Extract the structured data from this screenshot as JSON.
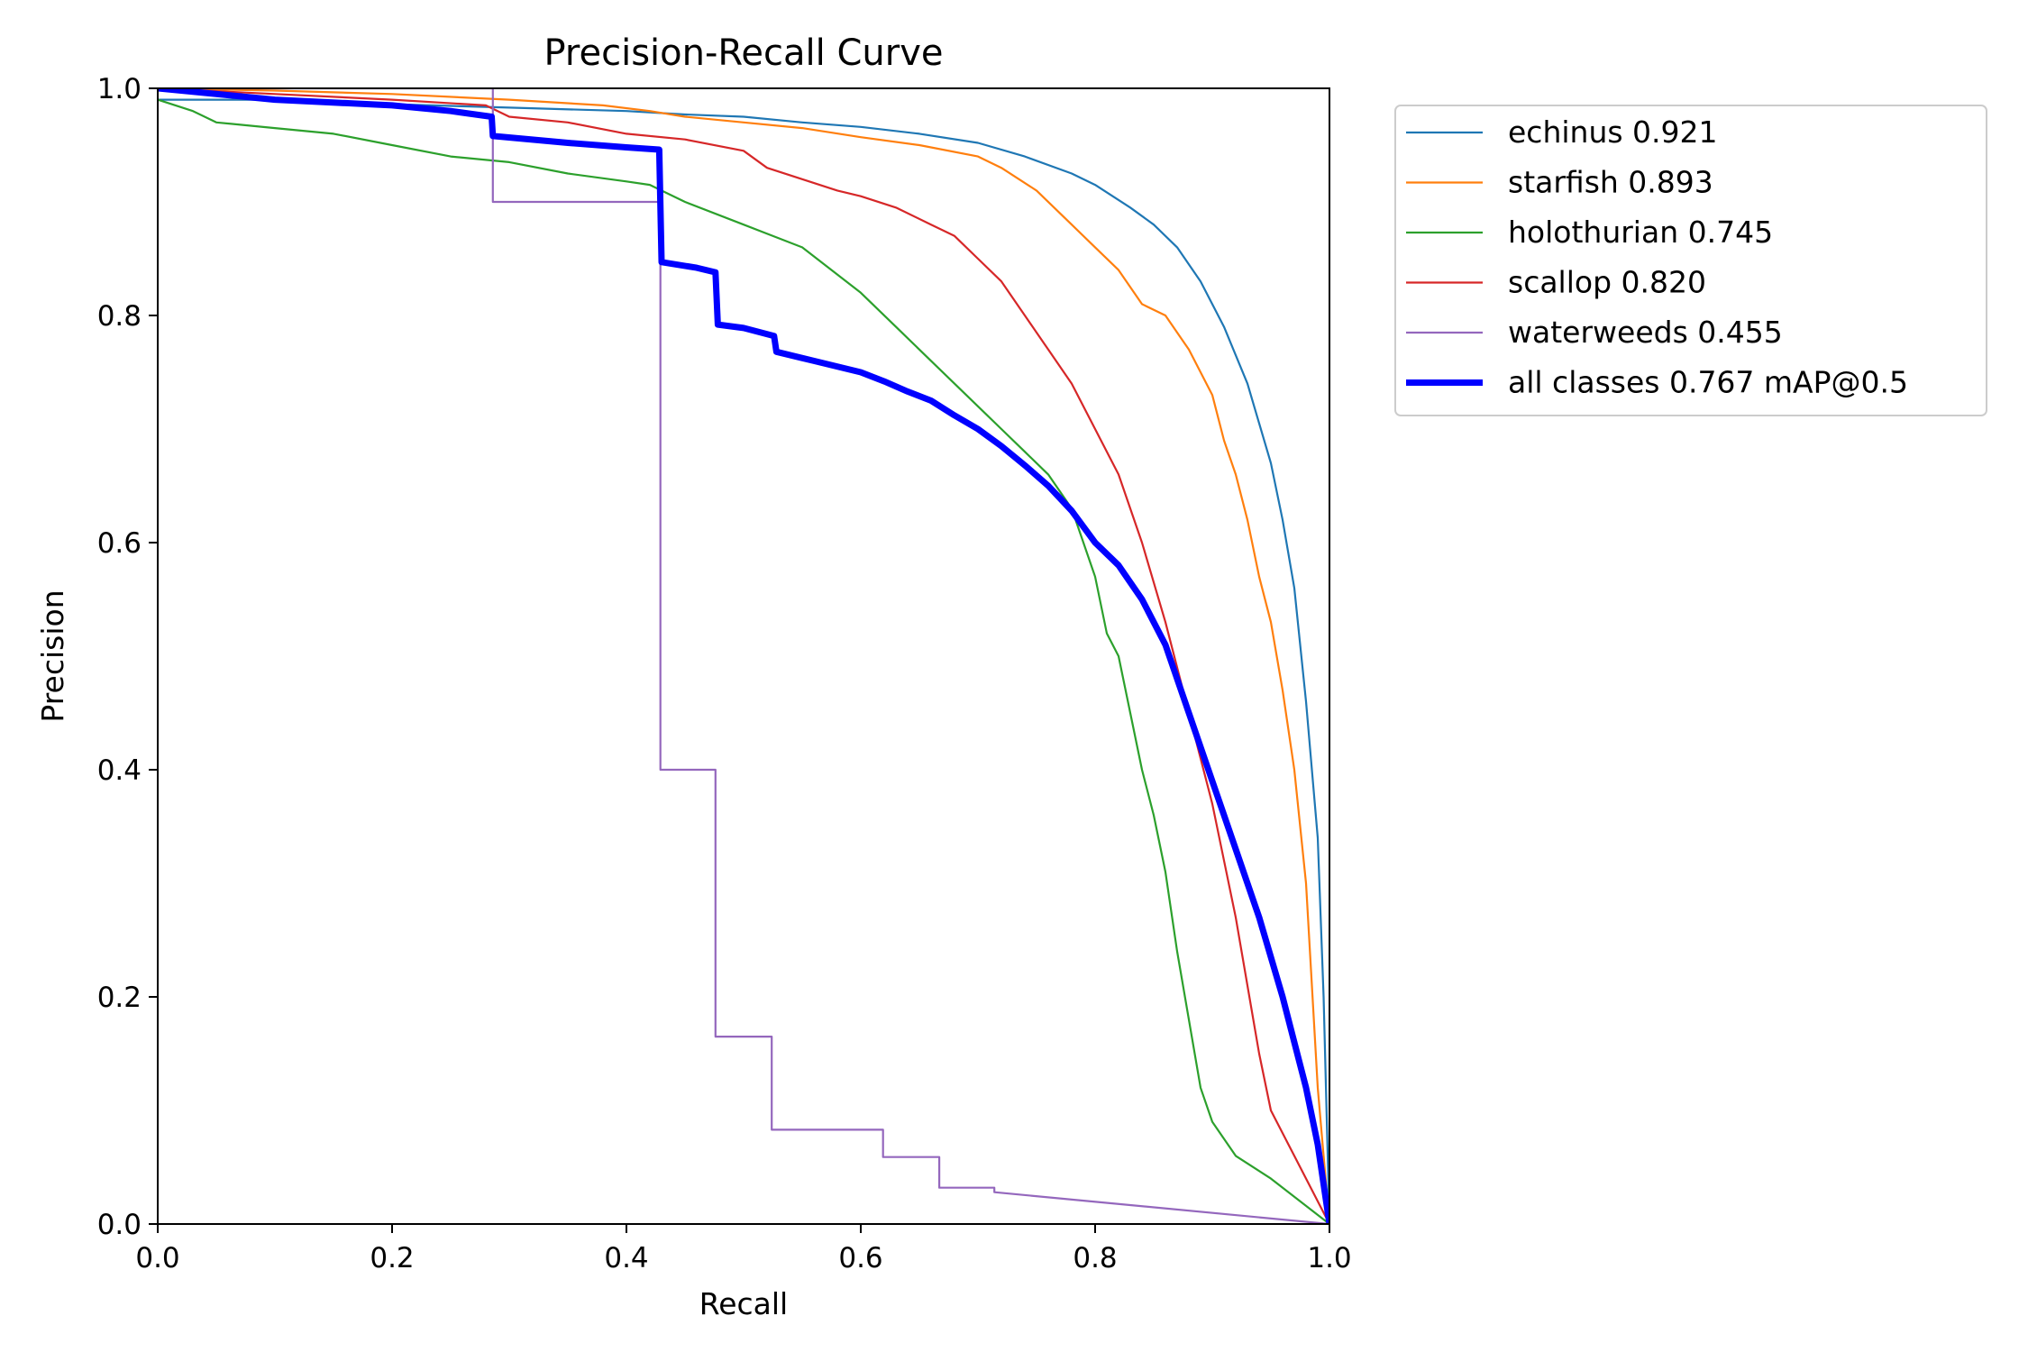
{
  "chart_data": {
    "type": "line",
    "title": "Precision-Recall Curve",
    "xlabel": "Recall",
    "ylabel": "Precision",
    "xlim": [
      0.0,
      1.0
    ],
    "ylim": [
      0.0,
      1.0
    ],
    "xticks": [
      "0.0",
      "0.2",
      "0.4",
      "0.6",
      "0.8",
      "1.0"
    ],
    "yticks": [
      "0.0",
      "0.2",
      "0.4",
      "0.6",
      "0.8",
      "1.0"
    ],
    "grid": false,
    "legend_position": "outside-upper-right",
    "series": [
      {
        "name": "echinus 0.921",
        "color": "#1f77b4",
        "width": "thin",
        "points": [
          [
            0,
            0.99
          ],
          [
            0.1,
            0.99
          ],
          [
            0.2,
            0.986
          ],
          [
            0.3,
            0.983
          ],
          [
            0.4,
            0.98
          ],
          [
            0.45,
            0.977
          ],
          [
            0.5,
            0.975
          ],
          [
            0.55,
            0.97
          ],
          [
            0.6,
            0.966
          ],
          [
            0.65,
            0.96
          ],
          [
            0.7,
            0.952
          ],
          [
            0.74,
            0.94
          ],
          [
            0.78,
            0.925
          ],
          [
            0.8,
            0.915
          ],
          [
            0.83,
            0.895
          ],
          [
            0.85,
            0.88
          ],
          [
            0.87,
            0.86
          ],
          [
            0.89,
            0.83
          ],
          [
            0.91,
            0.79
          ],
          [
            0.93,
            0.74
          ],
          [
            0.95,
            0.67
          ],
          [
            0.96,
            0.62
          ],
          [
            0.97,
            0.56
          ],
          [
            0.98,
            0.46
          ],
          [
            0.99,
            0.34
          ],
          [
            0.995,
            0.2
          ],
          [
            1.0,
            0.0
          ]
        ]
      },
      {
        "name": "starfish 0.893",
        "color": "#ff7f0e",
        "width": "thin",
        "points": [
          [
            0,
            1.0
          ],
          [
            0.1,
            0.998
          ],
          [
            0.2,
            0.995
          ],
          [
            0.3,
            0.99
          ],
          [
            0.38,
            0.985
          ],
          [
            0.42,
            0.98
          ],
          [
            0.45,
            0.975
          ],
          [
            0.5,
            0.97
          ],
          [
            0.55,
            0.965
          ],
          [
            0.6,
            0.957
          ],
          [
            0.65,
            0.95
          ],
          [
            0.7,
            0.94
          ],
          [
            0.72,
            0.93
          ],
          [
            0.75,
            0.91
          ],
          [
            0.78,
            0.88
          ],
          [
            0.8,
            0.86
          ],
          [
            0.82,
            0.84
          ],
          [
            0.84,
            0.81
          ],
          [
            0.86,
            0.8
          ],
          [
            0.88,
            0.77
          ],
          [
            0.9,
            0.73
          ],
          [
            0.91,
            0.69
          ],
          [
            0.92,
            0.66
          ],
          [
            0.93,
            0.62
          ],
          [
            0.94,
            0.57
          ],
          [
            0.95,
            0.53
          ],
          [
            0.96,
            0.47
          ],
          [
            0.97,
            0.4
          ],
          [
            0.98,
            0.3
          ],
          [
            0.99,
            0.12
          ],
          [
            1.0,
            0.0
          ]
        ]
      },
      {
        "name": "holothurian 0.745",
        "color": "#2ca02c",
        "width": "thin",
        "points": [
          [
            0,
            0.99
          ],
          [
            0.03,
            0.98
          ],
          [
            0.05,
            0.97
          ],
          [
            0.1,
            0.965
          ],
          [
            0.15,
            0.96
          ],
          [
            0.2,
            0.95
          ],
          [
            0.25,
            0.94
          ],
          [
            0.3,
            0.935
          ],
          [
            0.35,
            0.925
          ],
          [
            0.4,
            0.918
          ],
          [
            0.42,
            0.915
          ],
          [
            0.45,
            0.9
          ],
          [
            0.5,
            0.88
          ],
          [
            0.55,
            0.86
          ],
          [
            0.6,
            0.82
          ],
          [
            0.63,
            0.79
          ],
          [
            0.66,
            0.76
          ],
          [
            0.7,
            0.72
          ],
          [
            0.72,
            0.7
          ],
          [
            0.74,
            0.68
          ],
          [
            0.76,
            0.66
          ],
          [
            0.78,
            0.63
          ],
          [
            0.79,
            0.6
          ],
          [
            0.8,
            0.57
          ],
          [
            0.81,
            0.52
          ],
          [
            0.82,
            0.5
          ],
          [
            0.83,
            0.45
          ],
          [
            0.84,
            0.4
          ],
          [
            0.85,
            0.36
          ],
          [
            0.86,
            0.31
          ],
          [
            0.87,
            0.24
          ],
          [
            0.88,
            0.18
          ],
          [
            0.89,
            0.12
          ],
          [
            0.9,
            0.09
          ],
          [
            0.92,
            0.06
          ],
          [
            0.95,
            0.04
          ],
          [
            1.0,
            0.0
          ]
        ]
      },
      {
        "name": "scallop 0.820",
        "color": "#d62728",
        "width": "thin",
        "points": [
          [
            0,
            1.0
          ],
          [
            0.1,
            0.995
          ],
          [
            0.2,
            0.99
          ],
          [
            0.28,
            0.985
          ],
          [
            0.3,
            0.975
          ],
          [
            0.35,
            0.97
          ],
          [
            0.4,
            0.96
          ],
          [
            0.45,
            0.955
          ],
          [
            0.5,
            0.945
          ],
          [
            0.52,
            0.93
          ],
          [
            0.55,
            0.92
          ],
          [
            0.58,
            0.91
          ],
          [
            0.6,
            0.905
          ],
          [
            0.63,
            0.895
          ],
          [
            0.66,
            0.88
          ],
          [
            0.68,
            0.87
          ],
          [
            0.7,
            0.85
          ],
          [
            0.72,
            0.83
          ],
          [
            0.74,
            0.8
          ],
          [
            0.76,
            0.77
          ],
          [
            0.78,
            0.74
          ],
          [
            0.8,
            0.7
          ],
          [
            0.82,
            0.66
          ],
          [
            0.84,
            0.6
          ],
          [
            0.86,
            0.53
          ],
          [
            0.88,
            0.45
          ],
          [
            0.9,
            0.37
          ],
          [
            0.91,
            0.32
          ],
          [
            0.92,
            0.27
          ],
          [
            0.93,
            0.21
          ],
          [
            0.94,
            0.15
          ],
          [
            0.95,
            0.1
          ],
          [
            0.97,
            0.06
          ],
          [
            1.0,
            0.0
          ]
        ]
      },
      {
        "name": "waterweeds 0.455",
        "color": "#9467bd",
        "width": "thin",
        "points": [
          [
            0,
            1.0
          ],
          [
            0.286,
            1.0
          ],
          [
            0.286,
            0.9
          ],
          [
            0.429,
            0.9
          ],
          [
            0.429,
            0.4
          ],
          [
            0.476,
            0.4
          ],
          [
            0.476,
            0.165
          ],
          [
            0.524,
            0.165
          ],
          [
            0.524,
            0.083
          ],
          [
            0.619,
            0.083
          ],
          [
            0.619,
            0.059
          ],
          [
            0.667,
            0.059
          ],
          [
            0.667,
            0.032
          ],
          [
            0.714,
            0.032
          ],
          [
            0.714,
            0.028
          ],
          [
            1.0,
            0.0
          ]
        ]
      },
      {
        "name": "all classes 0.767 mAP@0.5",
        "color": "#0000ff",
        "width": "thick",
        "points": [
          [
            0,
            1.0
          ],
          [
            0.1,
            0.99
          ],
          [
            0.2,
            0.985
          ],
          [
            0.25,
            0.98
          ],
          [
            0.285,
            0.975
          ],
          [
            0.286,
            0.958
          ],
          [
            0.35,
            0.952
          ],
          [
            0.4,
            0.948
          ],
          [
            0.428,
            0.946
          ],
          [
            0.43,
            0.847
          ],
          [
            0.46,
            0.842
          ],
          [
            0.476,
            0.838
          ],
          [
            0.478,
            0.792
          ],
          [
            0.5,
            0.789
          ],
          [
            0.526,
            0.782
          ],
          [
            0.528,
            0.768
          ],
          [
            0.56,
            0.76
          ],
          [
            0.6,
            0.75
          ],
          [
            0.62,
            0.742
          ],
          [
            0.64,
            0.733
          ],
          [
            0.66,
            0.725
          ],
          [
            0.68,
            0.712
          ],
          [
            0.7,
            0.7
          ],
          [
            0.72,
            0.685
          ],
          [
            0.74,
            0.668
          ],
          [
            0.76,
            0.65
          ],
          [
            0.78,
            0.628
          ],
          [
            0.8,
            0.6
          ],
          [
            0.82,
            0.58
          ],
          [
            0.84,
            0.55
          ],
          [
            0.86,
            0.51
          ],
          [
            0.88,
            0.45
          ],
          [
            0.9,
            0.39
          ],
          [
            0.92,
            0.33
          ],
          [
            0.94,
            0.27
          ],
          [
            0.96,
            0.2
          ],
          [
            0.98,
            0.12
          ],
          [
            0.99,
            0.07
          ],
          [
            1.0,
            0.0
          ]
        ]
      }
    ]
  }
}
